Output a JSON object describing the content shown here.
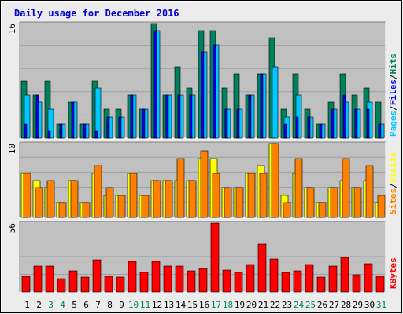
{
  "title": "Daily usage for December 2016",
  "colors": {
    "background": "#ececec",
    "panel": "#c0c0c0",
    "title": "#0000cc",
    "hits": "#00805c",
    "files": "#0000ff",
    "pages": "#00c8ff",
    "visits": "#ffff00",
    "sites": "#ff8000",
    "kbytes": "#ff0000",
    "weekend_label": "#00805c",
    "weekday_label": "#000000"
  },
  "chart_data": [
    {
      "type": "bar",
      "name": "hits-files-pages",
      "y_max_label": "16",
      "ylim": [
        0,
        16
      ],
      "legend": [
        {
          "text": "Hits",
          "color": "#00805c"
        },
        {
          "text": "/",
          "color": "#000000"
        },
        {
          "text": "Files",
          "color": "#0000ff"
        },
        {
          "text": "/",
          "color": "#000000"
        },
        {
          "text": "Pages",
          "color": "#00c8ff"
        }
      ],
      "series": [
        {
          "name": "Hits",
          "values": [
            8,
            6,
            8,
            2,
            5,
            2,
            8,
            4,
            4,
            6,
            4,
            16,
            6,
            10,
            7,
            15,
            15,
            7,
            9,
            6,
            9,
            14,
            4,
            9,
            4,
            2,
            5,
            9,
            6,
            7,
            5
          ]
        },
        {
          "name": "Files",
          "values": [
            2,
            6,
            1,
            2,
            5,
            2,
            1,
            3,
            3,
            6,
            4,
            15,
            6,
            6,
            6,
            12,
            13,
            4,
            4,
            6,
            9,
            0,
            2,
            3,
            3,
            2,
            4,
            6,
            4,
            4,
            2
          ]
        },
        {
          "name": "Pages",
          "values": [
            6,
            5,
            4,
            2,
            5,
            2,
            7,
            3,
            3,
            6,
            4,
            15,
            6,
            6,
            6,
            12,
            13,
            4,
            4,
            6,
            9,
            10,
            3,
            6,
            3,
            2,
            4,
            5,
            4,
            5,
            2
          ]
        }
      ],
      "categories": [
        "1",
        "2",
        "3",
        "4",
        "5",
        "6",
        "7",
        "8",
        "9",
        "10",
        "11",
        "12",
        "13",
        "14",
        "15",
        "16",
        "17",
        "18",
        "19",
        "20",
        "21",
        "22",
        "23",
        "24",
        "25",
        "26",
        "27",
        "28",
        "29",
        "30",
        "31"
      ]
    },
    {
      "type": "bar",
      "name": "visits-sites",
      "y_max_label": "10",
      "ylim": [
        0,
        10
      ],
      "legend": [
        {
          "text": "Visits",
          "color": "#ffff00"
        },
        {
          "text": "/",
          "color": "#000000"
        },
        {
          "text": "Sites",
          "color": "#ff8000"
        }
      ],
      "series": [
        {
          "name": "Visits",
          "values": [
            6,
            5,
            4,
            2,
            5,
            2,
            6,
            3,
            3,
            6,
            3,
            5,
            5,
            5,
            5,
            8,
            8,
            4,
            4,
            6,
            7,
            10,
            3,
            6,
            4,
            2,
            4,
            5,
            4,
            5,
            2
          ]
        },
        {
          "name": "Sites",
          "values": [
            6,
            4,
            5,
            2,
            5,
            2,
            7,
            4,
            3,
            6,
            3,
            5,
            5,
            8,
            5,
            9,
            6,
            4,
            4,
            6,
            6,
            10,
            2,
            8,
            4,
            2,
            4,
            8,
            4,
            7,
            3
          ]
        }
      ],
      "categories": [
        "1",
        "2",
        "3",
        "4",
        "5",
        "6",
        "7",
        "8",
        "9",
        "10",
        "11",
        "12",
        "13",
        "14",
        "15",
        "16",
        "17",
        "18",
        "19",
        "20",
        "21",
        "22",
        "23",
        "24",
        "25",
        "26",
        "27",
        "28",
        "29",
        "30",
        "31"
      ]
    },
    {
      "type": "bar",
      "name": "kbytes",
      "y_max_label": "56",
      "ylim": [
        0,
        56
      ],
      "legend": [
        {
          "text": "KBytes",
          "color": "#ff0000"
        }
      ],
      "series": [
        {
          "name": "KBytes",
          "values": [
            13,
            21,
            21,
            11,
            17,
            12,
            26,
            13,
            12,
            25,
            16,
            25,
            21,
            21,
            17,
            19,
            56,
            18,
            16,
            22,
            39,
            27,
            16,
            17,
            22,
            12,
            21,
            28,
            14,
            23,
            13
          ]
        }
      ],
      "categories": [
        "1",
        "2",
        "3",
        "4",
        "5",
        "6",
        "7",
        "8",
        "9",
        "10",
        "11",
        "12",
        "13",
        "14",
        "15",
        "16",
        "17",
        "18",
        "19",
        "20",
        "21",
        "22",
        "23",
        "24",
        "25",
        "26",
        "27",
        "28",
        "29",
        "30",
        "31"
      ]
    }
  ],
  "x_labels": [
    {
      "text": "1",
      "weekend": false
    },
    {
      "text": "2",
      "weekend": false
    },
    {
      "text": "3",
      "weekend": true
    },
    {
      "text": "4",
      "weekend": true
    },
    {
      "text": "5",
      "weekend": false
    },
    {
      "text": "6",
      "weekend": false
    },
    {
      "text": "7",
      "weekend": false
    },
    {
      "text": "8",
      "weekend": false
    },
    {
      "text": "9",
      "weekend": false
    },
    {
      "text": "10",
      "weekend": true
    },
    {
      "text": "11",
      "weekend": true
    },
    {
      "text": "12",
      "weekend": false
    },
    {
      "text": "13",
      "weekend": false
    },
    {
      "text": "14",
      "weekend": false
    },
    {
      "text": "15",
      "weekend": false
    },
    {
      "text": "16",
      "weekend": false
    },
    {
      "text": "17",
      "weekend": true
    },
    {
      "text": "18",
      "weekend": true
    },
    {
      "text": "19",
      "weekend": false
    },
    {
      "text": "20",
      "weekend": false
    },
    {
      "text": "21",
      "weekend": false
    },
    {
      "text": "22",
      "weekend": false
    },
    {
      "text": "23",
      "weekend": false
    },
    {
      "text": "24",
      "weekend": true
    },
    {
      "text": "25",
      "weekend": true
    },
    {
      "text": "26",
      "weekend": false
    },
    {
      "text": "27",
      "weekend": false
    },
    {
      "text": "28",
      "weekend": false
    },
    {
      "text": "29",
      "weekend": false
    },
    {
      "text": "30",
      "weekend": false
    },
    {
      "text": "31",
      "weekend": true
    }
  ]
}
